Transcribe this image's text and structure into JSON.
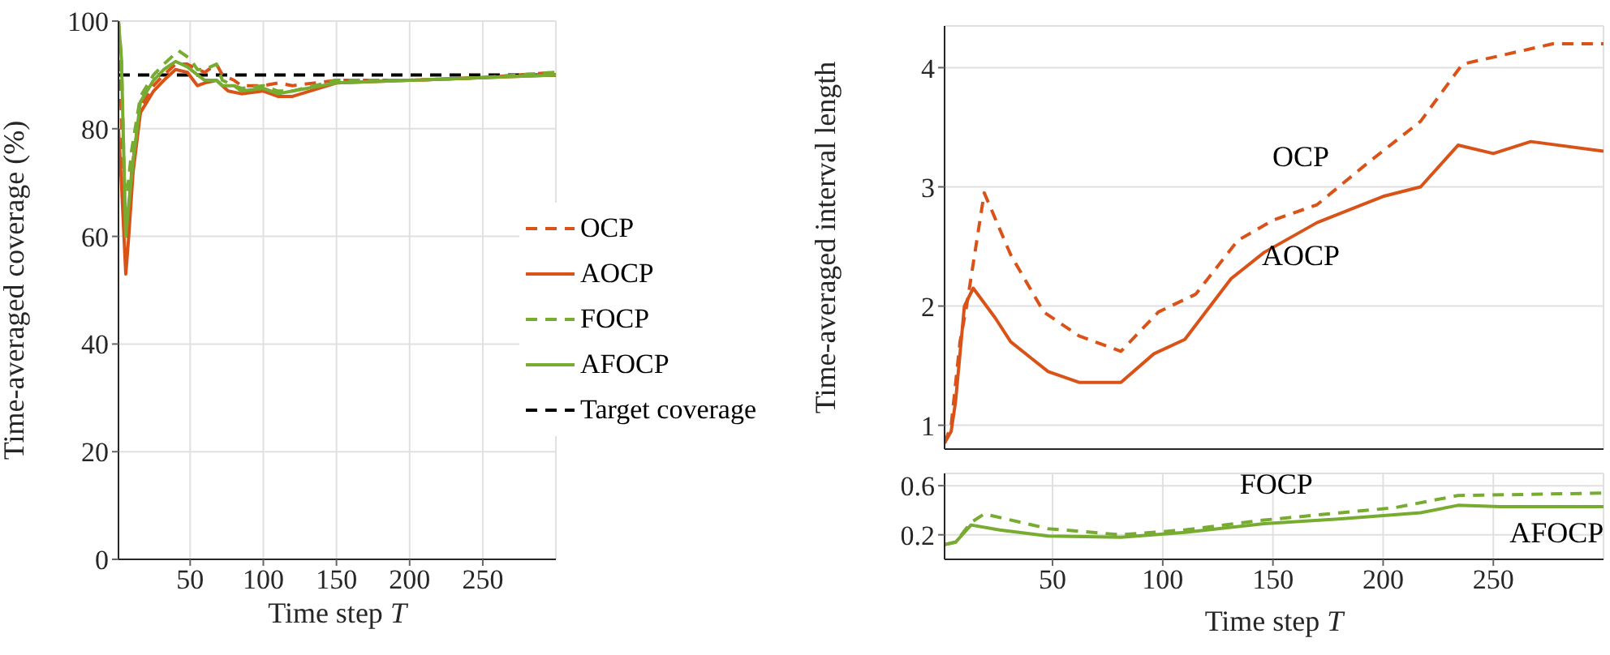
{
  "chart_data": [
    {
      "type": "line",
      "xlabel": "Time step T",
      "ylabel": "Time-averaged coverage (%)",
      "xlim": [
        1,
        300
      ],
      "ylim": [
        0,
        100
      ],
      "xticks": [
        50,
        100,
        150,
        200,
        250
      ],
      "yticks": [
        0,
        20,
        40,
        60,
        80,
        100
      ],
      "grid": true,
      "legend": "right",
      "ref_lines": [
        {
          "axis": "y",
          "value": 90,
          "label": "Target coverage",
          "color": "#000000",
          "line_style": "dashed"
        }
      ],
      "series": [
        {
          "name": "OCP",
          "color": "#d95319",
          "line_style": "dashed",
          "x": [
            1,
            3,
            5,
            7,
            10,
            16,
            25,
            32,
            40,
            48,
            55,
            60,
            68,
            72,
            80,
            85,
            100,
            110,
            120,
            150,
            200,
            250,
            300
          ],
          "values": [
            100,
            82,
            65,
            60,
            72,
            84,
            88,
            90,
            92,
            92,
            91,
            90.5,
            92,
            90,
            89,
            88,
            88,
            88.5,
            88,
            89,
            89,
            89.5,
            90.5
          ]
        },
        {
          "name": "AOCP",
          "color": "#d95319",
          "line_style": "solid",
          "x": [
            1,
            3,
            6,
            8,
            11,
            16,
            25,
            32,
            40,
            48,
            55,
            60,
            68,
            72,
            76,
            85,
            100,
            110,
            120,
            150,
            200,
            250,
            300
          ],
          "values": [
            80,
            70,
            53,
            60,
            72,
            83,
            87,
            89,
            91,
            90.5,
            88,
            88.5,
            89,
            88,
            87,
            86.5,
            87,
            86,
            86,
            88.5,
            89,
            89.5,
            90
          ]
        },
        {
          "name": "FOCP",
          "color": "#77ac30",
          "line_style": "dashed",
          "x": [
            1,
            3,
            5,
            7,
            10,
            16,
            25,
            32,
            42,
            50,
            55,
            60,
            68,
            72,
            80,
            85,
            100,
            110,
            120,
            150,
            200,
            250,
            300
          ],
          "values": [
            100,
            93,
            70,
            68,
            76,
            86,
            90,
            92,
            94.5,
            93,
            91,
            91,
            92,
            89,
            88,
            87.5,
            88,
            87,
            87,
            89,
            89,
            89.5,
            90.5
          ]
        },
        {
          "name": "AFOCP",
          "color": "#77ac30",
          "line_style": "solid",
          "x": [
            1,
            3,
            6,
            8,
            11,
            16,
            25,
            32,
            40,
            48,
            55,
            60,
            68,
            72,
            80,
            85,
            100,
            110,
            120,
            150,
            200,
            250,
            300
          ],
          "values": [
            100,
            93,
            60,
            66,
            74,
            85,
            89,
            91,
            92.5,
            91.5,
            90,
            89,
            89,
            88,
            88,
            87,
            87.5,
            86.5,
            87,
            88.5,
            89,
            89.5,
            90
          ]
        }
      ]
    },
    {
      "type": "line",
      "ylabel": "Time-averaged interval length",
      "xlim": [
        1,
        300
      ],
      "ylim": [
        0.8,
        4.35
      ],
      "xticks": [
        50,
        100,
        150,
        200,
        250
      ],
      "yticks": [
        1,
        2,
        3,
        4
      ],
      "grid": true,
      "tick_labels": "y",
      "series": [
        {
          "name": "OCP",
          "color": "#d95319",
          "line_style": "dashed",
          "x": [
            1,
            4,
            8,
            11,
            19,
            31,
            46,
            62,
            81,
            98,
            115,
            134,
            150,
            170,
            193,
            217,
            236,
            253,
            277,
            300
          ],
          "values": [
            0.85,
            1.0,
            1.7,
            2.0,
            2.95,
            2.43,
            1.95,
            1.75,
            1.62,
            1.95,
            2.1,
            2.55,
            2.72,
            2.85,
            3.2,
            3.55,
            4.03,
            4.1,
            4.2,
            4.2
          ]
        },
        {
          "name": "AOCP",
          "color": "#d95319",
          "line_style": "solid",
          "x": [
            1,
            4,
            6,
            10,
            14,
            24,
            31,
            48,
            62,
            81,
            96,
            110,
            131,
            146,
            170,
            200,
            217,
            234,
            250,
            267,
            300
          ],
          "values": [
            0.85,
            0.95,
            1.2,
            2.0,
            2.15,
            1.9,
            1.7,
            1.45,
            1.36,
            1.36,
            1.6,
            1.72,
            2.23,
            2.45,
            2.7,
            2.92,
            3.0,
            3.35,
            3.28,
            3.38,
            3.3
          ]
        }
      ]
    },
    {
      "type": "line",
      "xlabel": "Time step T",
      "xlim": [
        1,
        300
      ],
      "ylim": [
        0,
        0.7
      ],
      "xticks": [
        50,
        100,
        150,
        200,
        250
      ],
      "yticks": [
        0.2,
        0.6
      ],
      "grid": true,
      "series": [
        {
          "name": "FOCP",
          "color": "#77ac30",
          "line_style": "dashed",
          "x": [
            1,
            6,
            13,
            19,
            48,
            81,
            110,
            146,
            181,
            205,
            234,
            300
          ],
          "values": [
            0.12,
            0.14,
            0.3,
            0.37,
            0.25,
            0.2,
            0.24,
            0.32,
            0.38,
            0.42,
            0.52,
            0.54
          ]
        },
        {
          "name": "AFOCP",
          "color": "#77ac30",
          "line_style": "solid",
          "x": [
            1,
            6,
            13,
            26,
            48,
            81,
            110,
            146,
            181,
            217,
            234,
            253,
            300
          ],
          "values": [
            0.12,
            0.14,
            0.28,
            0.24,
            0.19,
            0.18,
            0.22,
            0.29,
            0.33,
            0.38,
            0.44,
            0.43,
            0.43
          ]
        }
      ]
    }
  ]
}
